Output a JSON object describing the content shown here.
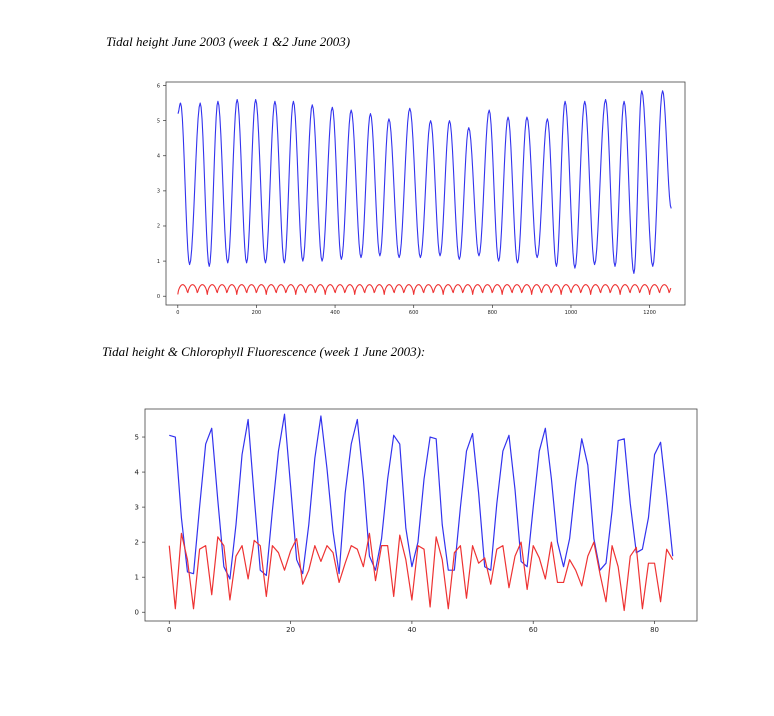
{
  "captions": {
    "top": "Tidal height June 2003 (week 1 &2 June 2003)",
    "bottom": "Tidal height & Chlorophyll Fluorescence (week 1 June 2003):"
  },
  "chart_data": [
    {
      "type": "line",
      "xlim": [
        -30,
        1290
      ],
      "ylim": [
        -0.25,
        6.1
      ],
      "xticks": [
        0,
        200,
        400,
        600,
        800,
        1000,
        1200
      ],
      "yticks": [
        0,
        1,
        2,
        3,
        4,
        5,
        6
      ],
      "grid": false,
      "series": [
        {
          "color": "#3333ee",
          "generator": "tide",
          "x_range": [
            0,
            1255
          ],
          "peaks": [
            [
              7,
              5.5
            ],
            [
              57,
              5.5
            ],
            [
              102,
              5.55
            ],
            [
              151,
              5.6
            ],
            [
              198,
              5.6
            ],
            [
              247,
              5.55
            ],
            [
              294,
              5.55
            ],
            [
              342,
              5.45
            ],
            [
              393,
              5.38
            ],
            [
              441,
              5.3
            ],
            [
              490,
              5.2
            ],
            [
              537,
              5.05
            ],
            [
              590,
              5.35
            ],
            [
              643,
              5.0
            ],
            [
              691,
              5.0
            ],
            [
              740,
              4.8
            ],
            [
              792,
              5.3
            ],
            [
              840,
              5.1
            ],
            [
              888,
              5.1
            ],
            [
              940,
              5.05
            ],
            [
              985,
              5.55
            ],
            [
              1035,
              5.55
            ],
            [
              1088,
              5.6
            ],
            [
              1135,
              5.55
            ],
            [
              1180,
              5.85
            ],
            [
              1233,
              5.85
            ]
          ],
          "troughs": [
            [
              30,
              0.9
            ],
            [
              80,
              0.85
            ],
            [
              127,
              0.95
            ],
            [
              175,
              0.95
            ],
            [
              223,
              0.95
            ],
            [
              271,
              0.95
            ],
            [
              318,
              1.0
            ],
            [
              367,
              1.0
            ],
            [
              416,
              1.05
            ],
            [
              466,
              1.1
            ],
            [
              514,
              1.15
            ],
            [
              563,
              1.1
            ],
            [
              617,
              1.1
            ],
            [
              667,
              1.15
            ],
            [
              716,
              1.05
            ],
            [
              766,
              1.15
            ],
            [
              816,
              1.0
            ],
            [
              864,
              0.95
            ],
            [
              914,
              1.1
            ],
            [
              963,
              0.85
            ],
            [
              1010,
              0.8
            ],
            [
              1060,
              0.9
            ],
            [
              1112,
              0.85
            ],
            [
              1160,
              0.65
            ],
            [
              1208,
              0.85
            ]
          ],
          "endpoints": [
            [
              0,
              5.2
            ],
            [
              1255,
              2.5
            ]
          ]
        },
        {
          "color": "#ee3333",
          "generator": "fluorescence",
          "x_range": [
            0,
            1255
          ],
          "period": 25,
          "high": 0.33,
          "low": 0.05
        }
      ]
    },
    {
      "type": "line",
      "xlim": [
        -4,
        87
      ],
      "ylim": [
        -0.25,
        5.8
      ],
      "xticks": [
        0,
        20,
        40,
        60,
        80
      ],
      "yticks": [
        0,
        1,
        2,
        3,
        4,
        5
      ],
      "grid": false,
      "series": [
        {
          "color": "#3333ee",
          "x": [
            0,
            1,
            2,
            3,
            4,
            5,
            6,
            7,
            8,
            9,
            10,
            11,
            12,
            13,
            14,
            15,
            16,
            17,
            18,
            19,
            20,
            21,
            22,
            23,
            24,
            25,
            26,
            27,
            28,
            29,
            30,
            31,
            32,
            33,
            34,
            35,
            36,
            37,
            38,
            39,
            40,
            41,
            42,
            43,
            44,
            45,
            46,
            47,
            48,
            49,
            50,
            51,
            52,
            53,
            54,
            55,
            56,
            57,
            58,
            59,
            60,
            61,
            62,
            63,
            64,
            65,
            66,
            67,
            68,
            69,
            70,
            71,
            72,
            73,
            74,
            75,
            76,
            77,
            78,
            79,
            80,
            81,
            82,
            83
          ],
          "y": [
            5.05,
            5.0,
            2.7,
            1.15,
            1.1,
            3.0,
            4.8,
            5.25,
            3.2,
            1.3,
            0.95,
            2.5,
            4.5,
            5.5,
            3.3,
            1.2,
            1.05,
            2.9,
            4.6,
            5.65,
            3.6,
            1.5,
            1.1,
            2.5,
            4.4,
            5.6,
            4.1,
            2.3,
            1.1,
            3.4,
            4.8,
            5.5,
            3.8,
            1.6,
            1.2,
            2.1,
            3.8,
            5.05,
            4.8,
            2.4,
            1.3,
            2.0,
            3.8,
            5.0,
            4.95,
            2.5,
            1.2,
            1.2,
            3.0,
            4.6,
            5.1,
            3.4,
            1.3,
            1.2,
            3.1,
            4.6,
            5.05,
            3.5,
            1.45,
            1.3,
            3.0,
            4.6,
            5.25,
            3.8,
            2.0,
            1.3,
            2.1,
            3.7,
            4.95,
            4.2,
            2.1,
            1.2,
            1.4,
            2.9,
            4.9,
            4.95,
            3.1,
            1.7,
            1.8,
            2.7,
            4.5,
            4.85,
            3.3,
            1.6
          ]
        },
        {
          "color": "#ee3333",
          "x": [
            0,
            1,
            2,
            3,
            4,
            5,
            6,
            7,
            8,
            9,
            10,
            11,
            12,
            13,
            14,
            15,
            16,
            17,
            18,
            19,
            20,
            21,
            22,
            23,
            24,
            25,
            26,
            27,
            28,
            29,
            30,
            31,
            32,
            33,
            34,
            35,
            36,
            37,
            38,
            39,
            40,
            41,
            42,
            43,
            44,
            45,
            46,
            47,
            48,
            49,
            50,
            51,
            52,
            53,
            54,
            55,
            56,
            57,
            58,
            59,
            60,
            61,
            62,
            63,
            64,
            65,
            66,
            67,
            68,
            69,
            70,
            71,
            72,
            73,
            74,
            75,
            76,
            77,
            78,
            79,
            80,
            81,
            82,
            83
          ],
          "y": [
            1.9,
            0.1,
            2.25,
            1.5,
            0.1,
            1.8,
            1.9,
            0.5,
            2.15,
            1.9,
            0.35,
            1.6,
            1.9,
            0.95,
            2.05,
            1.9,
            0.45,
            1.9,
            1.7,
            1.2,
            1.75,
            2.1,
            0.8,
            1.2,
            1.9,
            1.45,
            1.9,
            1.7,
            0.85,
            1.4,
            1.9,
            1.8,
            1.3,
            2.25,
            0.9,
            1.9,
            1.9,
            0.45,
            2.2,
            1.5,
            0.35,
            1.9,
            1.8,
            0.15,
            2.15,
            1.5,
            0.1,
            1.7,
            1.9,
            0.4,
            1.9,
            1.4,
            1.55,
            0.8,
            1.8,
            1.9,
            0.7,
            1.6,
            2.0,
            0.65,
            1.9,
            1.55,
            0.95,
            2.0,
            0.85,
            0.85,
            1.5,
            1.2,
            0.75,
            1.6,
            2.0,
            1.1,
            0.3,
            1.9,
            1.3,
            0.05,
            1.6,
            1.85,
            0.1,
            1.4,
            1.4,
            0.3,
            1.8,
            1.5
          ]
        }
      ]
    }
  ]
}
